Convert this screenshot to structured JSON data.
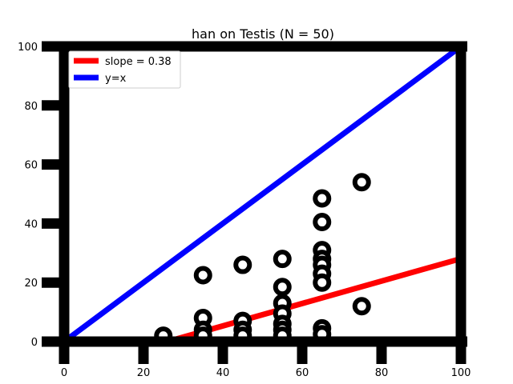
{
  "chart_data": {
    "type": "scatter",
    "title": "han on Testis (N = 50)",
    "xlabel": "",
    "ylabel": "",
    "xlim": [
      0,
      100
    ],
    "ylim": [
      0,
      100
    ],
    "x_ticks": [
      0,
      20,
      40,
      60,
      80,
      100
    ],
    "y_ticks": [
      0,
      20,
      40,
      60,
      80,
      100
    ],
    "x_tick_labels": [
      "0",
      "20",
      "40",
      "60",
      "80",
      "100"
    ],
    "y_tick_labels": [
      "0",
      "20",
      "40",
      "60",
      "80",
      "100"
    ],
    "grid": false,
    "legend_position": "top-left",
    "series": [
      {
        "kind": "points",
        "color": "#000000",
        "points": [
          {
            "x": 25,
            "y": 2
          },
          {
            "x": 35,
            "y": 22.5
          },
          {
            "x": 35,
            "y": 8
          },
          {
            "x": 35,
            "y": 4
          },
          {
            "x": 35,
            "y": 2
          },
          {
            "x": 45,
            "y": 26
          },
          {
            "x": 45,
            "y": 7
          },
          {
            "x": 45,
            "y": 4
          },
          {
            "x": 45,
            "y": 2
          },
          {
            "x": 55,
            "y": 28
          },
          {
            "x": 55,
            "y": 18.5
          },
          {
            "x": 55,
            "y": 13
          },
          {
            "x": 55,
            "y": 9.5
          },
          {
            "x": 55,
            "y": 6
          },
          {
            "x": 55,
            "y": 4
          },
          {
            "x": 55,
            "y": 2
          },
          {
            "x": 65,
            "y": 48.5
          },
          {
            "x": 65,
            "y": 40.5
          },
          {
            "x": 65,
            "y": 31
          },
          {
            "x": 65,
            "y": 28
          },
          {
            "x": 65,
            "y": 26
          },
          {
            "x": 65,
            "y": 23
          },
          {
            "x": 65,
            "y": 20
          },
          {
            "x": 65,
            "y": 4.5
          },
          {
            "x": 65,
            "y": 2.5
          },
          {
            "x": 75,
            "y": 54
          },
          {
            "x": 75,
            "y": 12
          }
        ]
      },
      {
        "kind": "line",
        "name": "slope = 0.38",
        "color": "#ff0000",
        "slope": 0.38,
        "x": [
          26,
          100
        ],
        "y": [
          0,
          28.1
        ]
      },
      {
        "kind": "line",
        "name": "y=x",
        "color": "#0000ff",
        "x": [
          0,
          100
        ],
        "y": [
          0,
          100
        ]
      }
    ]
  }
}
